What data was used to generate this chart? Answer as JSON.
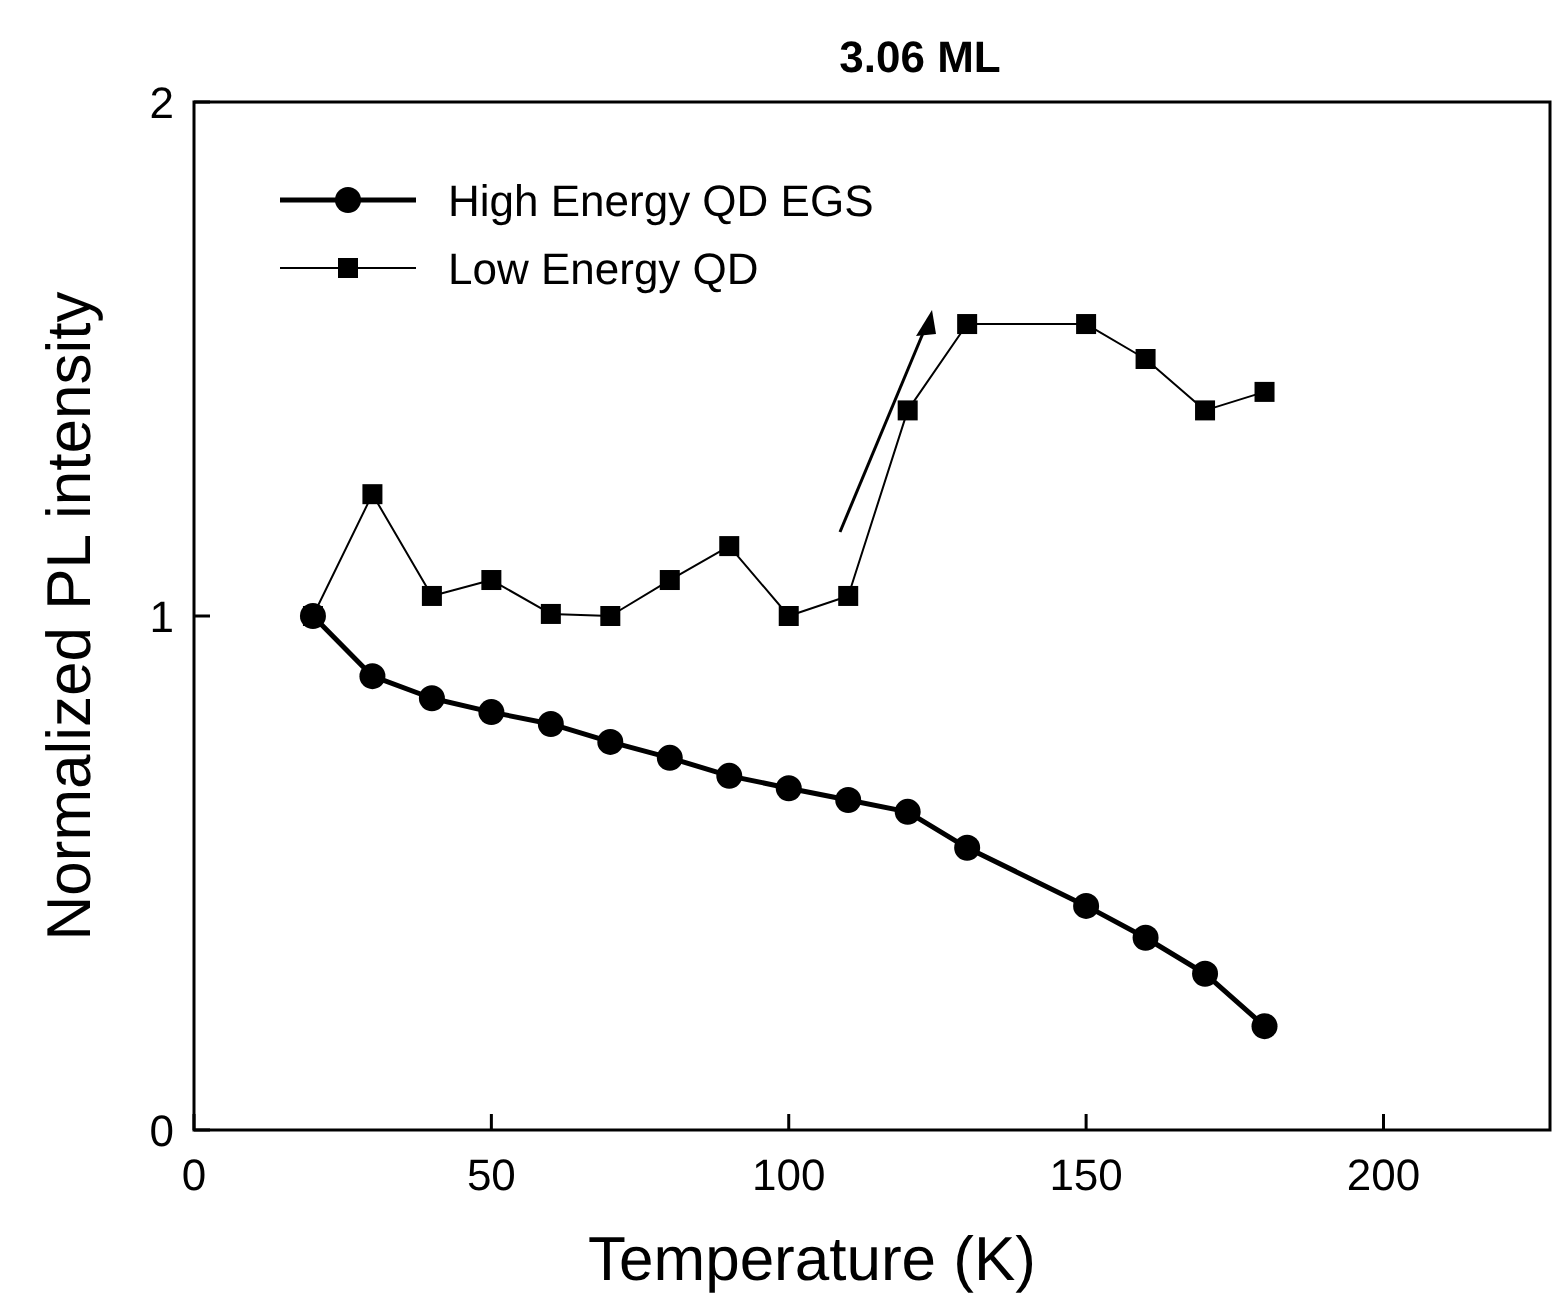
{
  "chart_data": {
    "type": "line",
    "title": "3.06 ML",
    "xlabel": "Temperature (K)",
    "ylabel": "Normalized PL intensity",
    "xlim": [
      0,
      228
    ],
    "ylim": [
      0,
      2
    ],
    "xticks": [
      0,
      50,
      100,
      150,
      200
    ],
    "yticks": [
      0,
      1,
      2
    ],
    "legend": "top left",
    "grid": false,
    "x": [
      20,
      30,
      40,
      50,
      60,
      70,
      80,
      90,
      100,
      110,
      120,
      130,
      150,
      160,
      170,
      180
    ],
    "series": [
      {
        "name": "High Energy QD EGS",
        "color": "#000000",
        "marker": "circle",
        "values": [
          1.0,
          0.883,
          0.84,
          0.813,
          0.79,
          0.755,
          0.724,
          0.689,
          0.665,
          0.642,
          0.619,
          0.549,
          0.436,
          0.374,
          0.304,
          0.202
        ]
      },
      {
        "name": "Low Energy QD",
        "color": "#000000",
        "marker": "square",
        "values": [
          1.0,
          1.237,
          1.039,
          1.07,
          1.004,
          1.0,
          1.07,
          1.136,
          1.0,
          1.039,
          1.4,
          1.568,
          1.568,
          1.5,
          1.4,
          1.436
        ]
      }
    ]
  }
}
